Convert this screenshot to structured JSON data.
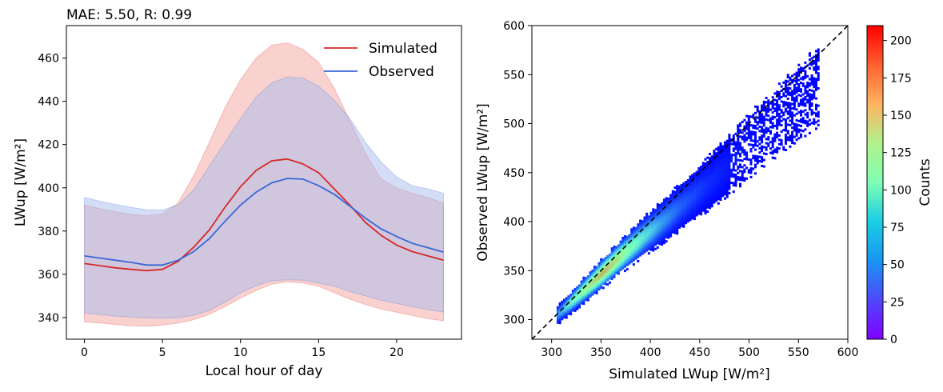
{
  "chart_data": [
    {
      "type": "line",
      "title": "MAE: 5.50, R: 0.99",
      "xlabel": "Local hour of day",
      "ylabel": "LWup [W/m²]",
      "xlim": [
        -1.15,
        24.15
      ],
      "ylim": [
        330,
        475
      ],
      "xticks": [
        0,
        5,
        10,
        15,
        20
      ],
      "yticks": [
        340,
        360,
        380,
        400,
        420,
        440,
        460
      ],
      "legend_position": "top-right",
      "x": [
        0,
        1,
        2,
        3,
        4,
        5,
        6,
        7,
        8,
        9,
        10,
        11,
        12,
        13,
        14,
        15,
        16,
        17,
        18,
        19,
        20,
        21,
        22,
        23
      ],
      "series": [
        {
          "name": "Simulated",
          "color": "#d62728",
          "band_color": "#f4a6a0",
          "values": [
            365.0,
            364.0,
            363.0,
            362.3,
            361.7,
            362.3,
            366.0,
            372.5,
            380.5,
            391.0,
            400.5,
            408.0,
            412.5,
            413.3,
            411.0,
            407.0,
            399.5,
            392.0,
            384.0,
            378.0,
            373.5,
            370.5,
            368.5,
            366.5
          ],
          "upper": [
            392.0,
            390.3,
            389.0,
            387.7,
            387.0,
            388.0,
            393.0,
            405.5,
            421.0,
            437.0,
            450.0,
            460.0,
            466.0,
            467.0,
            464.0,
            458.0,
            446.0,
            431.0,
            416.0,
            404.0,
            400.0,
            397.5,
            395.5,
            393.0
          ],
          "lower": [
            338.0,
            337.5,
            336.8,
            336.2,
            336.0,
            336.5,
            337.5,
            339.0,
            341.5,
            345.0,
            349.0,
            352.5,
            355.5,
            356.5,
            356.0,
            354.5,
            351.5,
            348.5,
            346.0,
            344.0,
            342.5,
            341.0,
            339.5,
            338.5
          ]
        },
        {
          "name": "Observed",
          "color": "#3a66d6",
          "band_color": "#a8bcee",
          "values": [
            368.5,
            367.5,
            366.5,
            365.5,
            364.3,
            364.3,
            366.5,
            370.5,
            376.5,
            384.5,
            392.0,
            398.0,
            402.3,
            404.3,
            404.0,
            401.0,
            397.0,
            391.5,
            386.0,
            381.0,
            377.5,
            374.3,
            372.3,
            370.3
          ],
          "upper": [
            395.5,
            393.8,
            392.3,
            391.0,
            389.8,
            389.7,
            392.0,
            399.0,
            410.0,
            421.0,
            432.0,
            442.0,
            448.5,
            451.3,
            450.7,
            447.0,
            440.5,
            432.0,
            421.0,
            412.0,
            405.0,
            401.0,
            399.5,
            397.5
          ],
          "lower": [
            342.0,
            341.3,
            340.7,
            340.2,
            339.8,
            339.7,
            339.9,
            341.0,
            343.3,
            347.0,
            351.5,
            354.8,
            357.0,
            357.5,
            357.3,
            356.0,
            354.5,
            352.0,
            350.0,
            348.0,
            346.5,
            345.0,
            343.7,
            342.5
          ]
        }
      ]
    },
    {
      "type": "heatmap",
      "xlabel": "Simulated LWup [W/m²]",
      "ylabel": "Observed LWup [W/m²]",
      "xlim": [
        280,
        600
      ],
      "ylim": [
        280,
        600
      ],
      "xticks": [
        300,
        350,
        400,
        450,
        500,
        550,
        600
      ],
      "yticks": [
        300,
        350,
        400,
        450,
        500,
        550,
        600
      ],
      "diagonal": "1:1 dashed line",
      "colormap": "rainbow",
      "colorbar_label": "Counts",
      "colorbar_range": [
        0,
        210
      ],
      "colorbar_ticks": [
        0,
        25,
        50,
        75,
        100,
        125,
        150,
        175,
        200
      ],
      "density_ridge": [
        {
          "sim": 305,
          "obs": 304,
          "count": 40
        },
        {
          "sim": 320,
          "obs": 318,
          "count": 90
        },
        {
          "sim": 335,
          "obs": 332,
          "count": 130
        },
        {
          "sim": 350,
          "obs": 346,
          "count": 160
        },
        {
          "sim": 365,
          "obs": 360,
          "count": 140
        },
        {
          "sim": 380,
          "obs": 373,
          "count": 100
        },
        {
          "sim": 395,
          "obs": 386,
          "count": 70
        },
        {
          "sim": 410,
          "obs": 398,
          "count": 45
        },
        {
          "sim": 430,
          "obs": 415,
          "count": 25
        },
        {
          "sim": 455,
          "obs": 436,
          "count": 12
        },
        {
          "sim": 480,
          "obs": 458,
          "count": 6
        },
        {
          "sim": 510,
          "obs": 487,
          "count": 3
        },
        {
          "sim": 545,
          "obs": 518,
          "count": 1
        },
        {
          "sim": 570,
          "obs": 538,
          "count": 1
        }
      ]
    }
  ]
}
